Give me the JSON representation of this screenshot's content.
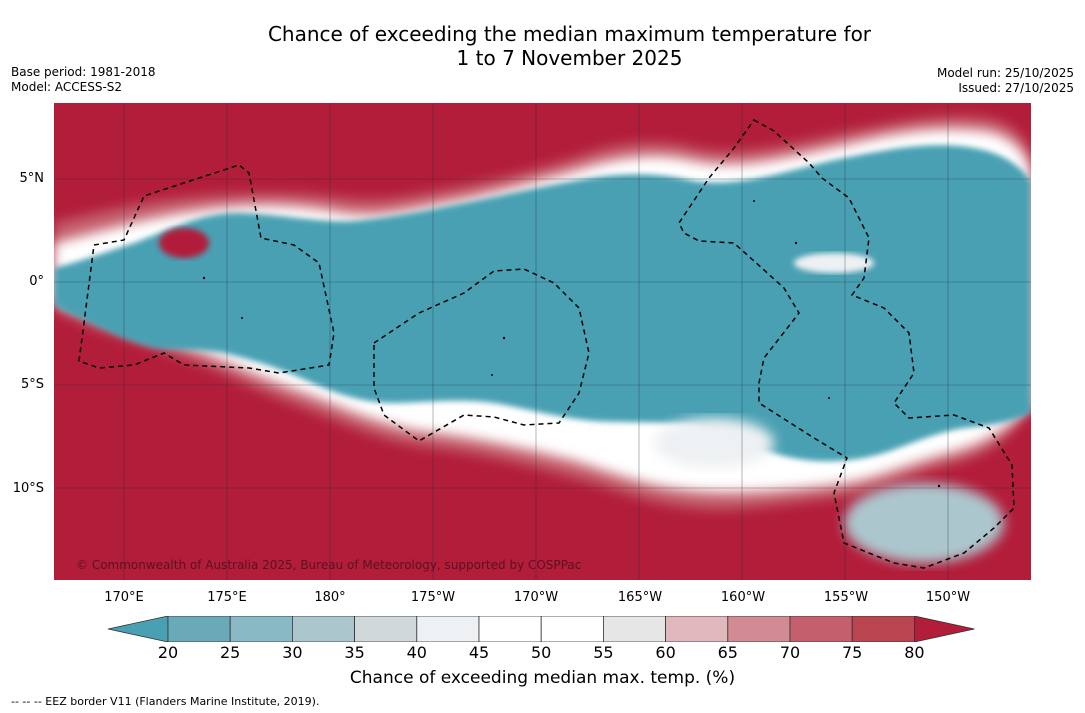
{
  "title_line1": "Chance of exceeding the median maximum temperature for",
  "title_line2": "1 to 7 November 2025",
  "base_period": "Base period: 1981-2018",
  "model": "Model: ACCESS-S2",
  "model_run": "Model run: 25/10/2025",
  "issued": "Issued: 27/10/2025",
  "copyright": "© Commonwealth of Australia 2025, Bureau of Meteorology, supported by COSPPac",
  "lat_labels": [
    "5°N",
    "0°",
    "5°S",
    "10°S"
  ],
  "lon_labels": [
    "170°E",
    "175°E",
    "180°",
    "175°W",
    "170°W",
    "165°W",
    "160°W",
    "155°W",
    "150°W"
  ],
  "colorbar": {
    "ticks": [
      "20",
      "25",
      "30",
      "35",
      "40",
      "45",
      "50",
      "55",
      "60",
      "65",
      "70",
      "75",
      "80"
    ],
    "colors": [
      "#4aa0b3",
      "#6aaab8",
      "#8ab9c6",
      "#acc6cd",
      "#d0d8da",
      "#eef1f3",
      "#ffffff",
      "#ffffff",
      "#e6e6e6",
      "#e0b8be",
      "#d28a93",
      "#c4606d",
      "#b84550",
      "#b21d3a"
    ],
    "title": "Chance of exceeding median max. temp. (%)"
  },
  "footer": "--  --  -- EEZ border V11 (Flanders Marine Institute, 2019).",
  "colors": {
    "warm": "#b21d3a",
    "cool": "#4aa0b3",
    "neutral": "#ffffff"
  }
}
